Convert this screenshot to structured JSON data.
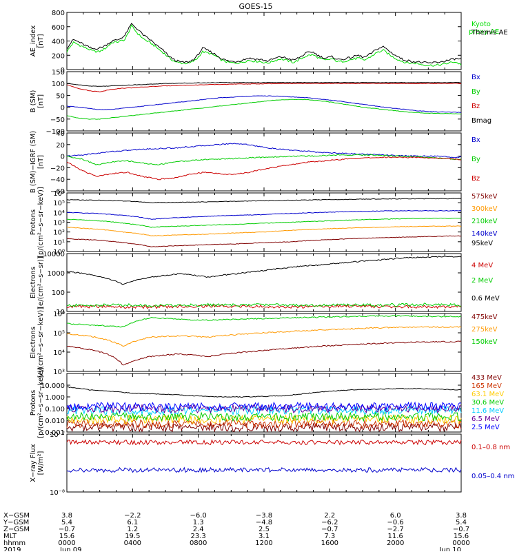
{
  "title": "GOES-15",
  "chart_data": [
    {
      "type": "line",
      "ylabel": "AE_index\n[nT]",
      "ylim": [
        0,
        800
      ],
      "ticks": [
        "800",
        "600",
        "400",
        "200",
        "0"
      ],
      "tick_values": [
        800,
        600,
        400,
        200,
        0
      ],
      "series": [
        {
          "name": "Kyoto\nproxy AE",
          "color": "#00dd00",
          "values": [
            250,
            380,
            340,
            300,
            260,
            250,
            300,
            380,
            390,
            420,
            610,
            500,
            420,
            370,
            300,
            230,
            150,
            100,
            90,
            90,
            140,
            250,
            230,
            190,
            130,
            100,
            90,
            100,
            130,
            120,
            110,
            90,
            120,
            150,
            130,
            100,
            140,
            190,
            210,
            160,
            130,
            150,
            110,
            120,
            140,
            160,
            130,
            180,
            240,
            270,
            200,
            150,
            110,
            90,
            90,
            70,
            60,
            60,
            70,
            90,
            110,
            70
          ]
        },
        {
          "name": "Themis AE",
          "color": "#000000",
          "values": [
            300,
            420,
            380,
            330,
            290,
            300,
            340,
            400,
            420,
            480,
            640,
            560,
            470,
            410,
            330,
            260,
            170,
            120,
            100,
            110,
            170,
            300,
            260,
            210,
            150,
            120,
            110,
            130,
            160,
            150,
            140,
            120,
            150,
            180,
            160,
            130,
            170,
            230,
            250,
            190,
            160,
            180,
            140,
            150,
            170,
            200,
            170,
            220,
            290,
            320,
            250,
            190,
            140,
            120,
            110,
            100,
            90,
            100,
            110,
            130,
            150,
            150
          ]
        }
      ]
    },
    {
      "type": "line",
      "ylabel": "B (SM)\n[nT]",
      "ylim": [
        -100,
        150
      ],
      "ticks": [
        "150",
        "100",
        "50",
        "0",
        "−50",
        "−100"
      ],
      "tick_values": [
        150,
        100,
        50,
        0,
        -50,
        -100
      ],
      "series": [
        {
          "name": "Bx",
          "color": "#0000cc",
          "values": [
            5,
            0,
            -5,
            -10,
            -10,
            -5,
            0,
            5,
            10,
            15,
            20,
            25,
            30,
            35,
            40,
            42,
            45,
            47,
            48,
            47,
            45,
            42,
            40,
            35,
            30,
            25,
            18,
            12,
            6,
            0,
            -5,
            -10,
            -15,
            -18,
            -20,
            -21,
            -22
          ]
        },
        {
          "name": "By",
          "color": "#00cc00",
          "values": [
            -35,
            -45,
            -50,
            -50,
            -45,
            -40,
            -35,
            -30,
            -25,
            -20,
            -15,
            -10,
            -5,
            0,
            5,
            10,
            15,
            20,
            25,
            30,
            32,
            33,
            32,
            28,
            22,
            15,
            8,
            0,
            -5,
            -10,
            -15,
            -20,
            -23,
            -25,
            -26,
            -27,
            -28
          ]
        },
        {
          "name": "Bz",
          "color": "#cc0000",
          "values": [
            95,
            80,
            70,
            65,
            75,
            80,
            82,
            85,
            88,
            90,
            92,
            93,
            94,
            95,
            96,
            97,
            98,
            98,
            99,
            99,
            100,
            100,
            100,
            100,
            100,
            100,
            100,
            100,
            100,
            100,
            100,
            100,
            100,
            100,
            100,
            100,
            100
          ]
        },
        {
          "name": "Bmag",
          "color": "#000000",
          "values": [
            100,
            95,
            90,
            88,
            90,
            92,
            94,
            96,
            98,
            100,
            101,
            102,
            103,
            103,
            104,
            104,
            104,
            104,
            104,
            104,
            104,
            104,
            104,
            104,
            104,
            104,
            104,
            104,
            104,
            104,
            104,
            104,
            104,
            104,
            104,
            104,
            104
          ]
        }
      ]
    },
    {
      "type": "line",
      "ylabel": "B (SM)−IGRF (SM)\n[nT]",
      "ylim": [
        -60,
        40
      ],
      "ticks": [
        "40",
        "20",
        "0",
        "−20",
        "−40",
        "−60"
      ],
      "tick_values": [
        40,
        20,
        0,
        -20,
        -40,
        -60
      ],
      "series": [
        {
          "name": "Bx",
          "color": "#0000cc",
          "values": [
            0,
            2,
            5,
            8,
            10,
            12,
            13,
            14,
            16,
            18,
            20,
            22,
            20,
            15,
            12,
            10,
            8,
            6,
            5,
            4,
            3,
            2,
            1,
            0,
            0,
            -1,
            -2
          ]
        },
        {
          "name": "By",
          "color": "#00cc00",
          "values": [
            0,
            -5,
            -15,
            -10,
            -8,
            -12,
            -15,
            -10,
            -8,
            -6,
            -5,
            -4,
            -3,
            -2,
            -1,
            0,
            0,
            1,
            2,
            2,
            2,
            1,
            0,
            -1,
            -2,
            -4,
            -6
          ]
        },
        {
          "name": "Bz",
          "color": "#cc0000",
          "values": [
            -10,
            -25,
            -35,
            -30,
            -28,
            -35,
            -40,
            -38,
            -32,
            -28,
            -30,
            -32,
            -28,
            -22,
            -18,
            -14,
            -10,
            -8,
            -6,
            -4,
            -3,
            -2,
            -2,
            -2,
            -3,
            -4,
            -6
          ]
        }
      ]
    },
    {
      "type": "line",
      "log": true,
      "ylabel": "Protons\n[p/(cm²−s−sr−keV)]",
      "ylim_exp": [
        0,
        6
      ],
      "ticks": [
        "10⁶",
        "10⁵",
        "10⁴",
        "10³",
        "10²",
        "10¹",
        "10⁰"
      ],
      "series": [
        {
          "name": "575keV",
          "color": "#800000",
          "values": [
            20,
            15,
            8,
            3,
            4,
            5,
            6,
            8,
            10,
            15,
            20,
            25,
            30,
            35,
            40
          ]
        },
        {
          "name": "300keV",
          "color": "#ff9900",
          "values": [
            300,
            200,
            100,
            40,
            50,
            60,
            80,
            100,
            150,
            200,
            250,
            300,
            350,
            400,
            400
          ]
        },
        {
          "name": "210keV",
          "color": "#00cc00",
          "values": [
            2000,
            1500,
            800,
            300,
            400,
            500,
            600,
            800,
            1000,
            1300,
            1600,
            2000,
            2300,
            2500,
            2500
          ]
        },
        {
          "name": "140keV",
          "color": "#0000cc",
          "values": [
            10000,
            8000,
            5000,
            2000,
            3000,
            4000,
            5000,
            6000,
            8000,
            10000,
            12000,
            14000,
            15000,
            15000,
            15000
          ]
        },
        {
          "name": "95keV",
          "color": "#000000",
          "values": [
            200000,
            180000,
            150000,
            100000,
            110000,
            120000,
            140000,
            160000,
            180000,
            200000,
            220000,
            240000,
            250000,
            260000,
            260000
          ]
        }
      ]
    },
    {
      "type": "line",
      "log": true,
      "ylabel": "Electrons\n[e/(cm²−s−sr)]",
      "ylim": [
        10,
        10000
      ],
      "ticks": [
        "10000",
        "1000",
        "100",
        "10"
      ],
      "tick_values": [
        10000,
        1000,
        100,
        10
      ],
      "series": [
        {
          "name": "4 MeV",
          "color": "#cc0000",
          "values": [
            18,
            18,
            17,
            17,
            18,
            19,
            18,
            18,
            17,
            18,
            19,
            18,
            18,
            17,
            18
          ]
        },
        {
          "name": "2 MeV",
          "color": "#00cc00",
          "values": [
            20,
            21,
            22,
            20,
            21,
            22,
            21,
            23,
            22,
            21,
            22,
            21,
            22,
            23,
            22
          ]
        },
        {
          "name": "0.6 MeV",
          "color": "#000000",
          "values": [
            1200,
            700,
            250,
            600,
            900,
            600,
            900,
            1300,
            2000,
            2600,
            3500,
            4500,
            6000,
            6800,
            7000
          ]
        }
      ]
    },
    {
      "type": "line",
      "log": true,
      "ylabel": "Electrons\n[e/(cm²−s−sr−keV)]",
      "ylim_exp": [
        3,
        6
      ],
      "ticks": [
        "10⁶",
        "10⁵",
        "10⁴",
        "10³"
      ],
      "series": [
        {
          "name": "475keV",
          "color": "#800000",
          "values": [
            20000,
            12000,
            2000,
            6000,
            8000,
            6000,
            9000,
            12000,
            16000,
            20000,
            24000,
            28000,
            32000,
            34000,
            35000
          ]
        },
        {
          "name": "275keV",
          "color": "#ff9900",
          "values": [
            90000,
            60000,
            20000,
            60000,
            70000,
            60000,
            80000,
            100000,
            120000,
            140000,
            160000,
            180000,
            200000,
            200000,
            200000
          ]
        },
        {
          "name": "150keV",
          "color": "#00cc00",
          "values": [
            300000,
            250000,
            200000,
            600000,
            500000,
            450000,
            500000,
            550000,
            600000,
            650000,
            700000,
            750000,
            750000,
            700000,
            700000
          ]
        }
      ]
    },
    {
      "type": "line",
      "log": true,
      "ylabel": "Protons\n[p/(cm²−s−sr−keV)]",
      "ylim": [
        0.001,
        100
      ],
      "ticks": [
        "10.000",
        "1.000",
        "0.100",
        "0.010",
        "0.001"
      ],
      "tick_values": [
        10,
        1,
        0.1,
        0.01,
        0.001
      ],
      "series": [
        {
          "name": "433 MeV",
          "color": "#800000",
          "values": [
            0.0025
          ]
        },
        {
          "name": "165 MeV",
          "color": "#cc3300",
          "values": [
            0.005
          ]
        },
        {
          "name": "63.1 MeV",
          "color": "#ffcc00",
          "values": [
            0.012
          ]
        },
        {
          "name": "30.6 MeV",
          "color": "#00cc00",
          "values": [
            0.02
          ]
        },
        {
          "name": "11.6 MeV",
          "color": "#00ccff",
          "values": [
            0.07
          ]
        },
        {
          "name": "6.5 MeV",
          "color": "#660099",
          "values": [
            0.1
          ]
        },
        {
          "name": "2.5 MeV",
          "color": "#0000ff",
          "values": [
            0.15
          ]
        },
        {
          "name": "",
          "color": "#000000",
          "values": [
            7,
            4,
            3,
            2,
            1.8,
            1.5,
            1.2,
            1.0,
            1.0,
            1.1,
            1.3,
            2,
            3,
            4,
            4.5,
            5,
            5,
            4.5,
            4
          ]
        }
      ]
    },
    {
      "type": "line",
      "log": true,
      "ylabel": "X−ray Flux\n[W/m²]",
      "ylim_exp": [
        -8,
        -7
      ],
      "ticks": [
        "10⁻⁷",
        "10⁻⁸"
      ],
      "series": [
        {
          "name": "0.1–0.8 nm",
          "color": "#cc0000",
          "values": [
            7.2e-08
          ]
        },
        {
          "name": "0.05–0.4 nm",
          "color": "#0000cc",
          "values": [
            2.4e-08
          ]
        }
      ]
    }
  ],
  "xaxis": {
    "row_labels": [
      "X−GSM",
      "Y−GSM",
      "Z−GSM",
      "MLT",
      "hhmm",
      "2019"
    ],
    "columns": [
      [
        "3.8",
        "5.4",
        "−0.7",
        "15.6",
        "0000",
        "Jun 09"
      ],
      [
        "−2.2",
        "6.1",
        "1.2",
        "19.5",
        "0400",
        ""
      ],
      [
        "−6.0",
        "1.3",
        "2.4",
        "23.3",
        "0800",
        ""
      ],
      [
        "−3.8",
        "−4.8",
        "2.5",
        "3.1",
        "1200",
        ""
      ],
      [
        "2.2",
        "−6.2",
        "−0.7",
        "7.3",
        "1600",
        ""
      ],
      [
        "6.0",
        "−0.6",
        "−2.7",
        "11.6",
        "2000",
        ""
      ],
      [
        "3.8",
        "5.4",
        "−0.7",
        "15.6",
        "0000",
        "Jun 10"
      ]
    ]
  }
}
